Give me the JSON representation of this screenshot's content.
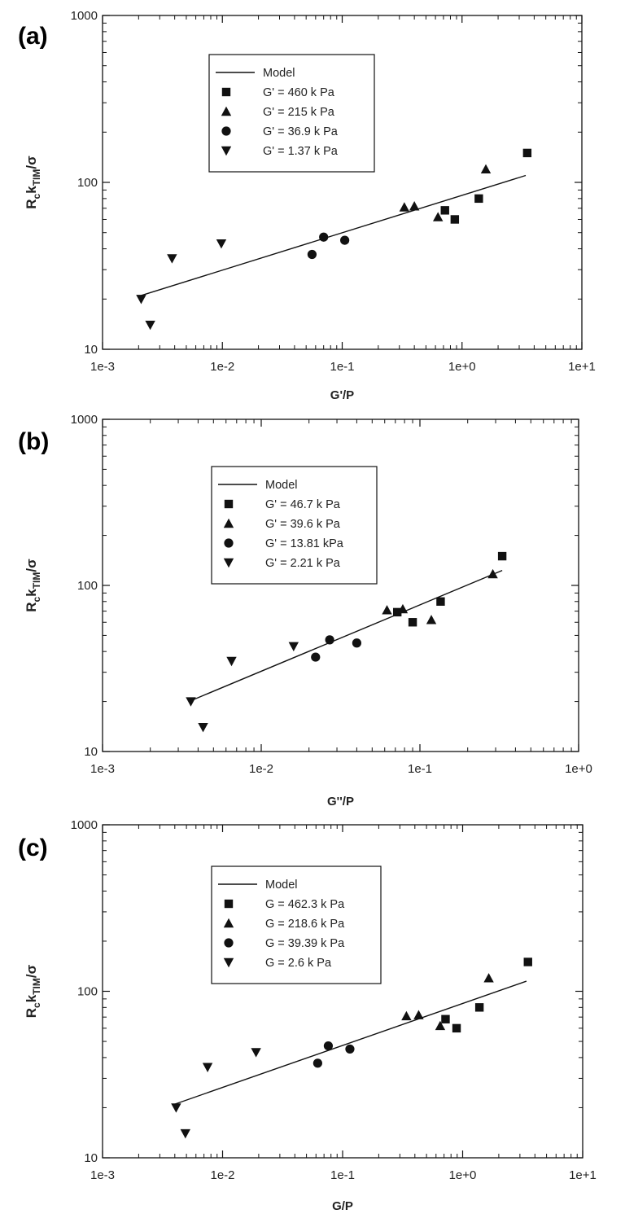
{
  "chart_data": [
    {
      "type": "scatter",
      "panel_label": "(a)",
      "xscale": "log",
      "yscale": "log",
      "xlim": [
        0.001,
        10
      ],
      "ylim": [
        10,
        1000
      ],
      "xticks": [
        "1e-3",
        "1e-2",
        "1e-1",
        "1e+0",
        "1e+1"
      ],
      "yticks": [
        "10",
        "100",
        "1000"
      ],
      "xlabel": "G'/P",
      "ylabel_parts": {
        "main": "R",
        "sub1": "c",
        "mid": "k",
        "sub2": "TIM",
        "tail": "/σ"
      },
      "legend_position": "top-left",
      "model": {
        "name": "Model",
        "x": [
          0.0021,
          3.4
        ],
        "y": [
          21,
          110
        ]
      },
      "series": [
        {
          "name": "G' = 460 k Pa",
          "marker": "square",
          "points": [
            [
              0.72,
              68
            ],
            [
              0.87,
              60
            ],
            [
              1.38,
              80
            ],
            [
              3.5,
              150
            ]
          ]
        },
        {
          "name": "G' = 215 k Pa",
          "marker": "triangle-up",
          "points": [
            [
              0.33,
              71
            ],
            [
              0.4,
              72
            ],
            [
              0.63,
              62
            ],
            [
              1.58,
              120
            ]
          ]
        },
        {
          "name": "G' = 36.9 k Pa",
          "marker": "circle",
          "points": [
            [
              0.056,
              37
            ],
            [
              0.07,
              47
            ],
            [
              0.105,
              45
            ]
          ]
        },
        {
          "name": "G' = 1.37 k Pa",
          "marker": "triangle-down",
          "points": [
            [
              0.0021,
              20
            ],
            [
              0.0025,
              14
            ],
            [
              0.0038,
              35
            ],
            [
              0.0098,
              43
            ]
          ]
        }
      ]
    },
    {
      "type": "scatter",
      "panel_label": "(b)",
      "xscale": "log",
      "yscale": "log",
      "xlim": [
        0.001,
        1
      ],
      "ylim": [
        10,
        1000
      ],
      "xticks": [
        "1e-3",
        "1e-2",
        "1e-1",
        "1e+0"
      ],
      "yticks": [
        "10",
        "100",
        "1000"
      ],
      "xlabel": "G''/P",
      "ylabel_parts": {
        "main": "R",
        "sub1": "c",
        "mid": "k",
        "sub2": "TIM",
        "tail": "/σ"
      },
      "legend_position": "top-left",
      "model": {
        "name": "Model",
        "x": [
          0.0035,
          0.33
        ],
        "y": [
          20,
          123
        ]
      },
      "series": [
        {
          "name": "G' = 46.7 k Pa",
          "marker": "square",
          "points": [
            [
              0.072,
              69
            ],
            [
              0.09,
              60
            ],
            [
              0.135,
              80
            ],
            [
              0.33,
              150
            ]
          ]
        },
        {
          "name": "G' = 39.6 k Pa",
          "marker": "triangle-up",
          "points": [
            [
              0.062,
              71
            ],
            [
              0.078,
              72
            ],
            [
              0.118,
              62
            ],
            [
              0.288,
              117
            ]
          ]
        },
        {
          "name": "G' = 13.81 kPa",
          "marker": "circle",
          "points": [
            [
              0.022,
              37
            ],
            [
              0.027,
              47
            ],
            [
              0.04,
              45
            ]
          ]
        },
        {
          "name": "G' = 2.21 k Pa",
          "marker": "triangle-down",
          "points": [
            [
              0.0036,
              20
            ],
            [
              0.0043,
              14
            ],
            [
              0.0065,
              35
            ],
            [
              0.016,
              43
            ]
          ]
        }
      ]
    },
    {
      "type": "scatter",
      "panel_label": "(c)",
      "xscale": "log",
      "yscale": "log",
      "xlim": [
        0.001,
        10
      ],
      "ylim": [
        10,
        1000
      ],
      "xticks": [
        "1e-3",
        "1e-2",
        "1e-1",
        "1e+0",
        "1e+1"
      ],
      "yticks": [
        "10",
        "100",
        "1000"
      ],
      "xlabel": "G/P",
      "ylabel_parts": {
        "main": "R",
        "sub1": "c",
        "mid": "k",
        "sub2": "TIM",
        "tail": "/σ"
      },
      "legend_position": "top-left",
      "model": {
        "name": "Model",
        "x": [
          0.004,
          3.4
        ],
        "y": [
          21,
          115
        ]
      },
      "series": [
        {
          "name": "G = 462.3 k Pa",
          "marker": "square",
          "points": [
            [
              0.72,
              68
            ],
            [
              0.89,
              60
            ],
            [
              1.38,
              80
            ],
            [
              3.5,
              150
            ]
          ]
        },
        {
          "name": "G = 218.6 k Pa",
          "marker": "triangle-up",
          "points": [
            [
              0.34,
              71
            ],
            [
              0.43,
              72
            ],
            [
              0.65,
              62
            ],
            [
              1.65,
              120
            ]
          ]
        },
        {
          "name": "G = 39.39 k Pa",
          "marker": "circle",
          "points": [
            [
              0.062,
              37
            ],
            [
              0.076,
              47
            ],
            [
              0.115,
              45
            ]
          ]
        },
        {
          "name": "G = 2.6 k Pa",
          "marker": "triangle-down",
          "points": [
            [
              0.0041,
              20
            ],
            [
              0.0049,
              14
            ],
            [
              0.0075,
              35
            ],
            [
              0.019,
              43
            ]
          ]
        }
      ]
    }
  ]
}
